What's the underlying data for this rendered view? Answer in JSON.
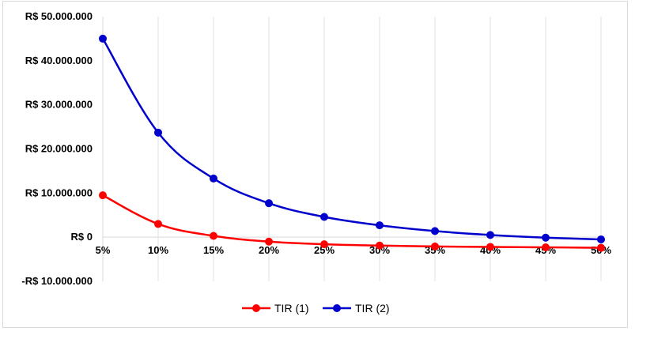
{
  "chart_data": {
    "type": "line",
    "title": "",
    "xlabel": "",
    "ylabel": "",
    "categories": [
      "5%",
      "10%",
      "15%",
      "20%",
      "25%",
      "30%",
      "35%",
      "40%",
      "45%",
      "50%"
    ],
    "ylim": [
      -10000000,
      50000000
    ],
    "yticks": [
      50000000,
      40000000,
      30000000,
      20000000,
      10000000,
      0,
      -10000000
    ],
    "ytick_labels": [
      "R$ 50.000.000",
      "R$ 40.000.000",
      "R$ 30.000.000",
      "R$ 20.000.000",
      "R$ 10.000.000",
      "R$ 0",
      "-R$ 10.000.000"
    ],
    "ytick_colors": [
      "#000000",
      "#000000",
      "#000000",
      "#000000",
      "#000000",
      "#000000",
      "#ff0000"
    ],
    "grid": "vertical",
    "legend_position": "bottom",
    "series": [
      {
        "name": "TIR (1)",
        "color": "#ff0000",
        "values": [
          9500000,
          3000000,
          300000,
          -1000000,
          -1600000,
          -1900000,
          -2100000,
          -2200000,
          -2300000,
          -2400000
        ]
      },
      {
        "name": "TIR (2)",
        "color": "#0000cc",
        "values": [
          45000000,
          23700000,
          13300000,
          7700000,
          4600000,
          2700000,
          1400000,
          500000,
          -100000,
          -500000
        ]
      }
    ]
  }
}
